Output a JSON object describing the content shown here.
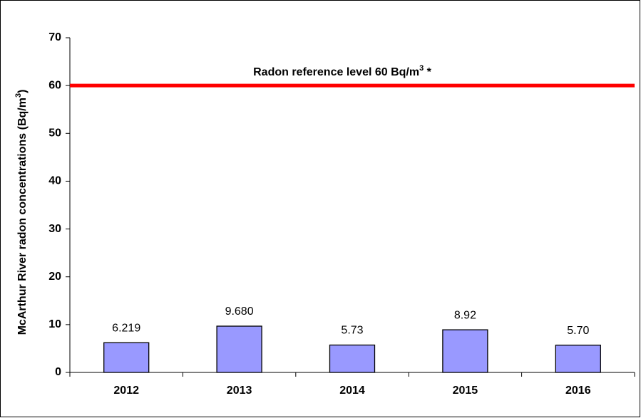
{
  "chart_data": {
    "type": "bar",
    "y_label": {
      "text": "McArthur River radon concentrations (Bq/m",
      "superscript": "3",
      "suffix": ")"
    },
    "annotation": {
      "text": "Radon reference level 60 Bq/m",
      "superscript": "3",
      "suffix": " *"
    },
    "reference_line": {
      "value": 60,
      "color": "#ff0000"
    },
    "categories": [
      "2012",
      "2013",
      "2014",
      "2015",
      "2016"
    ],
    "values": [
      6.219,
      9.68,
      5.73,
      8.92,
      5.7
    ],
    "value_labels": [
      "6.219",
      "9.680",
      "5.73",
      "8.92",
      "5.70"
    ],
    "color": "#9999ff",
    "ylim": [
      0,
      70
    ],
    "yticks": [
      0,
      10,
      20,
      30,
      40,
      50,
      60,
      70
    ]
  }
}
